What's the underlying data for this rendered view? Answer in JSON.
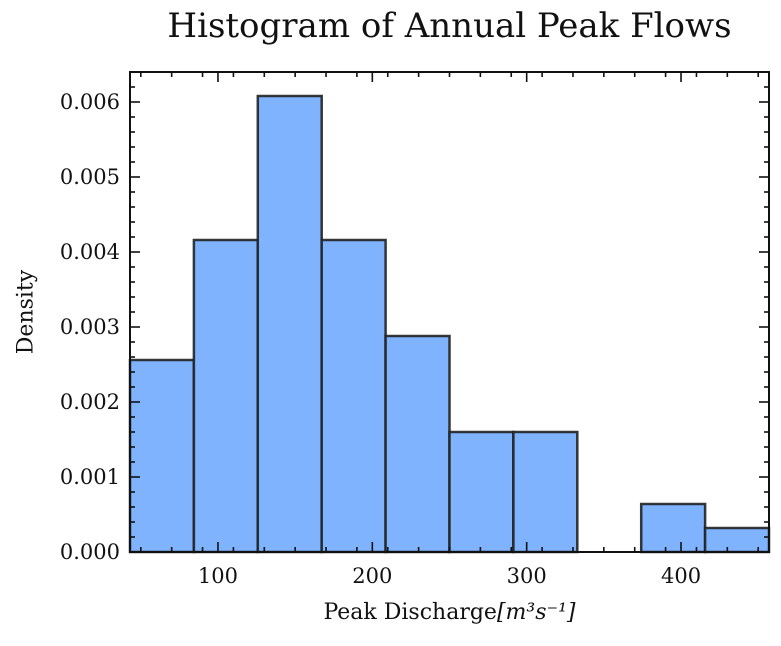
{
  "chart_data": {
    "type": "bar",
    "title": "Histogram of Annual Peak Flows",
    "xlabel": "Peak Discharge",
    "xlabel_units": "[m³s⁻¹]",
    "ylabel": "Density",
    "xlim": [
      43,
      457
    ],
    "ylim": [
      0,
      0.0064
    ],
    "xticks": [
      100,
      200,
      300,
      400
    ],
    "xtick_labels": [
      "100",
      "200",
      "300",
      "400"
    ],
    "yticks": [
      0.0,
      0.001,
      0.002,
      0.003,
      0.004,
      0.005,
      0.006
    ],
    "ytick_labels": [
      "0.000",
      "0.001",
      "0.002",
      "0.003",
      "0.004",
      "0.005",
      "0.006"
    ],
    "bin_edges": [
      43,
      84.4,
      125.8,
      167.2,
      208.6,
      250,
      291.4,
      332.8,
      374.2,
      415.6,
      457
    ],
    "values": [
      0.00256,
      0.00416,
      0.00608,
      0.00416,
      0.00288,
      0.0016,
      0.0016,
      0.0,
      0.00064,
      0.00032
    ],
    "bar_color": "#7fb3fe",
    "edge_color": "#222222",
    "grid": false
  }
}
